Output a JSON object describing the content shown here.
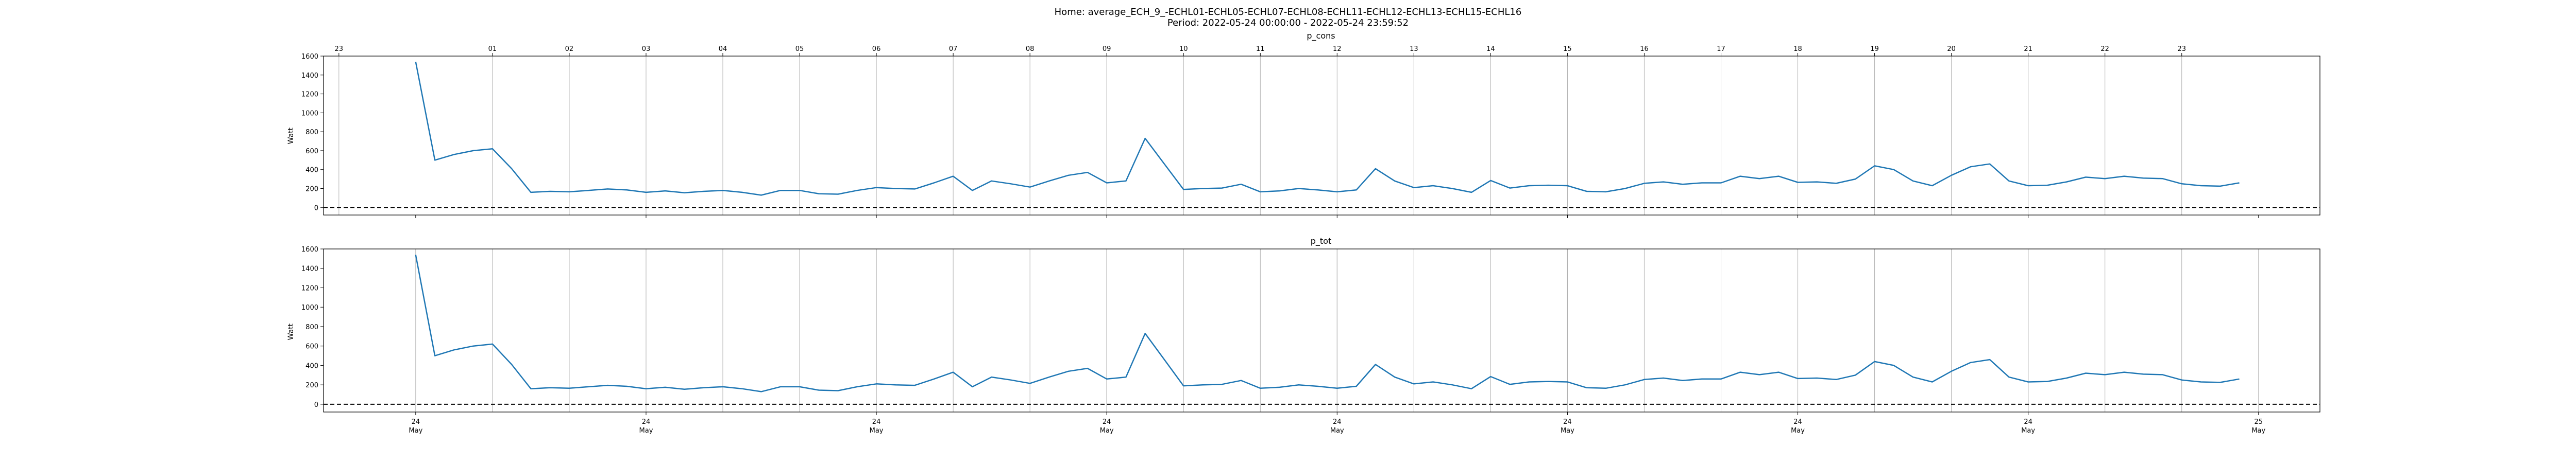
{
  "figure": {
    "title_line1": "Home: average_ECH_9_-ECHL01-ECHL05-ECHL07-ECHL08-ECHL11-ECHL12-ECHL13-ECHL15-ECHL16",
    "title_line2": "Period: 2022-05-24 00:00:00 - 2022-05-24 23:59:52"
  },
  "chart_data": [
    {
      "type": "line",
      "title": "p_cons",
      "xlabel": "",
      "ylabel": "Watt",
      "x_unit": "hours on 2022-05-24 (top hour labels)",
      "xlim": [
        -1.2,
        24.8
      ],
      "ylim": [
        -80,
        1600
      ],
      "yticks": [
        0,
        200,
        400,
        600,
        800,
        1000,
        1200,
        1400,
        1600
      ],
      "top_tick_hours": [
        -1,
        1,
        2,
        3,
        4,
        5,
        6,
        7,
        8,
        9,
        10,
        11,
        12,
        13,
        14,
        15,
        16,
        17,
        18,
        19,
        20,
        21,
        22,
        23
      ],
      "top_tick_labels": [
        "23",
        "01",
        "02",
        "03",
        "04",
        "05",
        "06",
        "07",
        "08",
        "09",
        "10",
        "11",
        "12",
        "13",
        "14",
        "15",
        "16",
        "17",
        "18",
        "19",
        "20",
        "21",
        "22",
        "23"
      ],
      "bottom_tick_hours": [
        0,
        3,
        6,
        9,
        12,
        15,
        18,
        21,
        24
      ],
      "bottom_tick_labels": [
        [
          "24",
          "May"
        ],
        [
          "24",
          "May"
        ],
        [
          "24",
          "May"
        ],
        [
          "24",
          "May"
        ],
        [
          "24",
          "May"
        ],
        [
          "24",
          "May"
        ],
        [
          "24",
          "May"
        ],
        [
          "24",
          "May"
        ],
        [
          "25",
          "May"
        ]
      ],
      "show_bottom_labels": false,
      "grid": "vertical",
      "zero_line": "dashed",
      "series": [
        {
          "color": "#1f77b4",
          "x": [
            0,
            0.25,
            0.5,
            0.75,
            1,
            1.25,
            1.5,
            1.75,
            2,
            2.25,
            2.5,
            2.75,
            3,
            3.25,
            3.5,
            3.75,
            4,
            4.25,
            4.5,
            4.75,
            5,
            5.25,
            5.5,
            5.75,
            6,
            6.25,
            6.5,
            6.75,
            7,
            7.25,
            7.5,
            7.75,
            8,
            8.25,
            8.5,
            8.75,
            9,
            9.25,
            9.5,
            9.75,
            10,
            10.25,
            10.5,
            10.75,
            11,
            11.25,
            11.5,
            11.75,
            12,
            12.25,
            12.5,
            12.75,
            13,
            13.25,
            13.5,
            13.75,
            14,
            14.25,
            14.5,
            14.75,
            15,
            15.25,
            15.5,
            15.75,
            16,
            16.25,
            16.5,
            16.75,
            17,
            17.25,
            17.5,
            17.75,
            18,
            18.25,
            18.5,
            18.75,
            19,
            19.25,
            19.5,
            19.75,
            20,
            20.25,
            20.5,
            20.75,
            21,
            21.25,
            21.5,
            21.75,
            22,
            22.25,
            22.5,
            22.75,
            23,
            23.25,
            23.5,
            23.75
          ],
          "y": [
            1540,
            500,
            560,
            600,
            620,
            410,
            160,
            170,
            165,
            180,
            195,
            185,
            160,
            175,
            155,
            170,
            180,
            160,
            130,
            180,
            180,
            145,
            140,
            180,
            210,
            200,
            195,
            260,
            330,
            180,
            280,
            250,
            215,
            280,
            340,
            370,
            260,
            280,
            730,
            460,
            190,
            200,
            205,
            245,
            165,
            175,
            200,
            185,
            165,
            185,
            410,
            280,
            210,
            230,
            200,
            160,
            285,
            205,
            230,
            235,
            230,
            170,
            165,
            200,
            255,
            270,
            245,
            260,
            260,
            330,
            305,
            330,
            265,
            270,
            255,
            300,
            440,
            400,
            280,
            230,
            340,
            430,
            460,
            280,
            230,
            235,
            270,
            320,
            305,
            330,
            310,
            305,
            250,
            230,
            225,
            260
          ]
        }
      ]
    },
    {
      "type": "line",
      "title": "p_tot",
      "xlabel": "",
      "ylabel": "Watt",
      "x_unit": "hours on 2022-05-24",
      "xlim": [
        -1.2,
        24.8
      ],
      "ylim": [
        -80,
        1600
      ],
      "yticks": [
        0,
        200,
        400,
        600,
        800,
        1000,
        1200,
        1400,
        1600
      ],
      "top_tick_hours": [],
      "top_tick_labels": [],
      "bottom_tick_hours": [
        0,
        3,
        6,
        9,
        12,
        15,
        18,
        21,
        24
      ],
      "bottom_tick_labels": [
        [
          "24",
          "May"
        ],
        [
          "24",
          "May"
        ],
        [
          "24",
          "May"
        ],
        [
          "24",
          "May"
        ],
        [
          "24",
          "May"
        ],
        [
          "24",
          "May"
        ],
        [
          "24",
          "May"
        ],
        [
          "24",
          "May"
        ],
        [
          "25",
          "May"
        ]
      ],
      "show_bottom_labels": true,
      "grid": "vertical",
      "zero_line": "dashed",
      "series": [
        {
          "color": "#1f77b4",
          "x": [
            0,
            0.25,
            0.5,
            0.75,
            1,
            1.25,
            1.5,
            1.75,
            2,
            2.25,
            2.5,
            2.75,
            3,
            3.25,
            3.5,
            3.75,
            4,
            4.25,
            4.5,
            4.75,
            5,
            5.25,
            5.5,
            5.75,
            6,
            6.25,
            6.5,
            6.75,
            7,
            7.25,
            7.5,
            7.75,
            8,
            8.25,
            8.5,
            8.75,
            9,
            9.25,
            9.5,
            9.75,
            10,
            10.25,
            10.5,
            10.75,
            11,
            11.25,
            11.5,
            11.75,
            12,
            12.25,
            12.5,
            12.75,
            13,
            13.25,
            13.5,
            13.75,
            14,
            14.25,
            14.5,
            14.75,
            15,
            15.25,
            15.5,
            15.75,
            16,
            16.25,
            16.5,
            16.75,
            17,
            17.25,
            17.5,
            17.75,
            18,
            18.25,
            18.5,
            18.75,
            19,
            19.25,
            19.5,
            19.75,
            20,
            20.25,
            20.5,
            20.75,
            21,
            21.25,
            21.5,
            21.75,
            22,
            22.25,
            22.5,
            22.75,
            23,
            23.25,
            23.5,
            23.75
          ],
          "y": [
            1540,
            500,
            560,
            600,
            620,
            410,
            160,
            170,
            165,
            180,
            195,
            185,
            160,
            175,
            155,
            170,
            180,
            160,
            130,
            180,
            180,
            145,
            140,
            180,
            210,
            200,
            195,
            260,
            330,
            180,
            280,
            250,
            215,
            280,
            340,
            370,
            260,
            280,
            730,
            460,
            190,
            200,
            205,
            245,
            165,
            175,
            200,
            185,
            165,
            185,
            410,
            280,
            210,
            230,
            200,
            160,
            285,
            205,
            230,
            235,
            230,
            170,
            165,
            200,
            255,
            270,
            245,
            260,
            260,
            330,
            305,
            330,
            265,
            270,
            255,
            300,
            440,
            400,
            280,
            230,
            340,
            430,
            460,
            280,
            230,
            235,
            270,
            320,
            305,
            330,
            310,
            305,
            250,
            230,
            225,
            260
          ]
        }
      ]
    }
  ]
}
